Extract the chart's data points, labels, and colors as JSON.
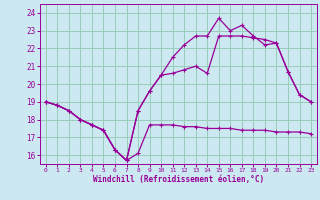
{
  "xlabel": "Windchill (Refroidissement éolien,°C)",
  "bg_color": "#cce8f0",
  "grid_color": "#99ccbb",
  "line_color": "#990099",
  "xlim": [
    -0.5,
    23.5
  ],
  "ylim": [
    15.5,
    24.5
  ],
  "xticks": [
    0,
    1,
    2,
    3,
    4,
    5,
    6,
    7,
    8,
    9,
    10,
    11,
    12,
    13,
    14,
    15,
    16,
    17,
    18,
    19,
    20,
    21,
    22,
    23
  ],
  "yticks": [
    16,
    17,
    18,
    19,
    20,
    21,
    22,
    23,
    24
  ],
  "line1_x": [
    0,
    1,
    2,
    3,
    4,
    5,
    6,
    7,
    8,
    9,
    10,
    11,
    12,
    13,
    14,
    15,
    16,
    17,
    18,
    19,
    20,
    21,
    22,
    23
  ],
  "line1_y": [
    19.0,
    18.8,
    18.5,
    18.0,
    17.7,
    17.4,
    16.3,
    15.7,
    16.1,
    17.7,
    17.7,
    17.7,
    17.6,
    17.6,
    17.5,
    17.5,
    17.5,
    17.4,
    17.4,
    17.4,
    17.3,
    17.3,
    17.3,
    17.2
  ],
  "line2_x": [
    0,
    1,
    2,
    3,
    4,
    5,
    6,
    7,
    8,
    9,
    10,
    11,
    12,
    13,
    14,
    15,
    16,
    17,
    18,
    19,
    20,
    21,
    22,
    23
  ],
  "line2_y": [
    19.0,
    18.8,
    18.5,
    18.0,
    17.7,
    17.4,
    16.3,
    15.7,
    18.5,
    19.6,
    20.5,
    20.6,
    20.8,
    21.0,
    20.6,
    22.7,
    22.7,
    22.7,
    22.6,
    22.5,
    22.3,
    20.7,
    19.4,
    19.0
  ],
  "line3_x": [
    0,
    1,
    2,
    3,
    4,
    5,
    6,
    7,
    8,
    9,
    10,
    11,
    12,
    13,
    14,
    15,
    16,
    17,
    18,
    19,
    20,
    21,
    22,
    23
  ],
  "line3_y": [
    19.0,
    18.8,
    18.5,
    18.0,
    17.7,
    17.4,
    16.3,
    15.7,
    18.5,
    19.6,
    20.5,
    21.5,
    22.2,
    22.7,
    22.7,
    23.7,
    23.0,
    23.3,
    22.7,
    22.2,
    22.3,
    20.7,
    19.4,
    19.0
  ]
}
